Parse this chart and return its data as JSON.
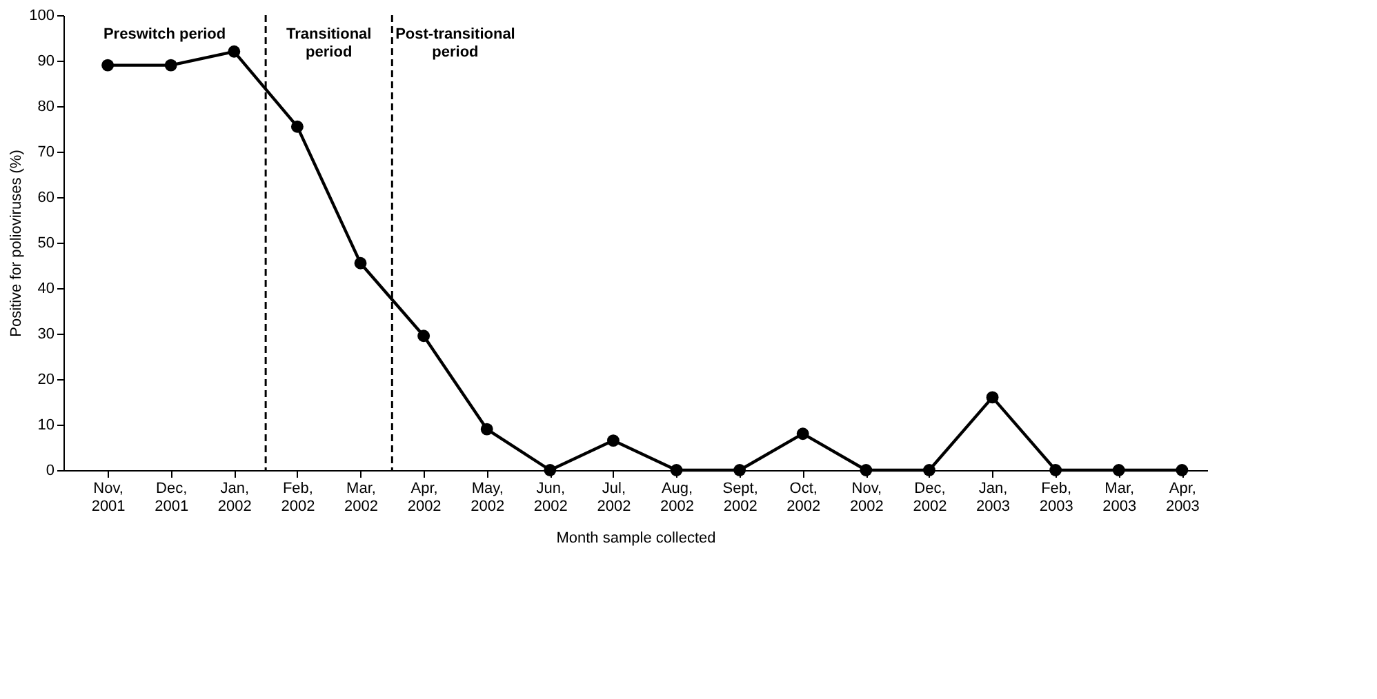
{
  "chart_data": {
    "type": "line",
    "xlabel": "Month sample collected",
    "ylabel": "Positive for polioviruses (%)",
    "categories": [
      "Nov, 2001",
      "Dec, 2001",
      "Jan, 2002",
      "Feb, 2002",
      "Mar, 2002",
      "Apr, 2002",
      "May, 2002",
      "Jun, 2002",
      "Jul, 2002",
      "Aug, 2002",
      "Sept, 2002",
      "Oct, 2002",
      "Nov, 2002",
      "Dec, 2002",
      "Jan, 2003",
      "Feb, 2003",
      "Mar, 2003",
      "Apr, 2003"
    ],
    "series": [
      {
        "color": "#000000",
        "values": [
          89,
          89,
          92,
          75.5,
          45.5,
          29.5,
          9,
          0,
          6.5,
          0,
          0,
          8,
          0,
          0,
          16,
          0,
          0,
          0
        ]
      }
    ],
    "ylim": [
      0,
      100
    ],
    "yticks": [
      0,
      10,
      20,
      30,
      40,
      50,
      60,
      70,
      80,
      90,
      100
    ],
    "annotations": [
      "Preswitch period",
      "Transitional\nperiod",
      "Post-transitional\nperiod"
    ],
    "marker": "circle",
    "line_style": "solid"
  }
}
